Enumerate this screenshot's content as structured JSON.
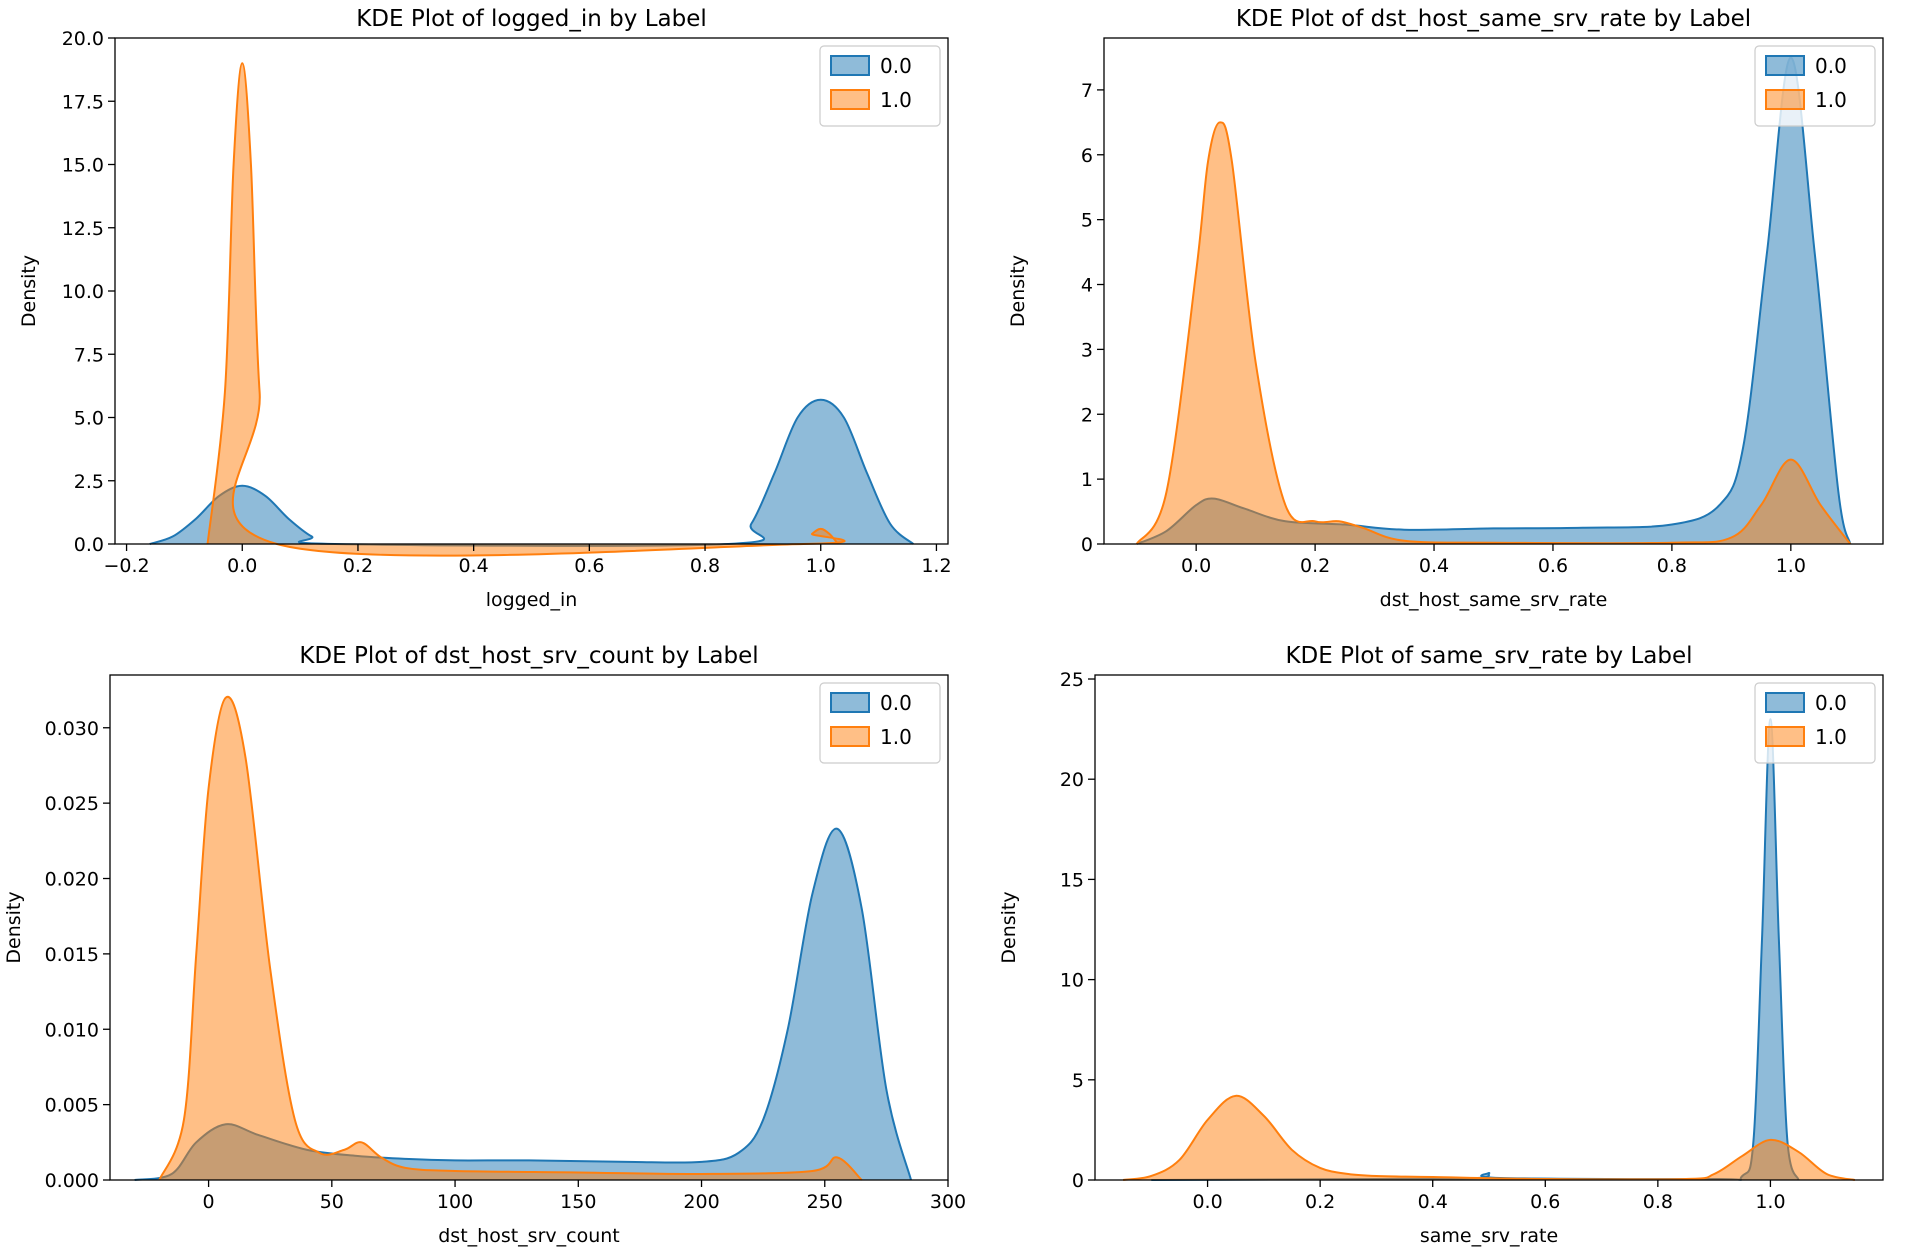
{
  "figure": {
    "background": "#ffffff"
  },
  "colors": {
    "series_0": "#1f77b4",
    "series_1": "#ff7f0e"
  },
  "chart_data": [
    {
      "type": "area",
      "title": "KDE Plot of logged_in by Label",
      "xlabel": "logged_in",
      "ylabel": "Density",
      "xlim": [
        -0.22,
        1.22
      ],
      "ylim": [
        0,
        20
      ],
      "xticks": [
        -0.2,
        0.0,
        0.2,
        0.4,
        0.6,
        0.8,
        1.0,
        1.2
      ],
      "xtick_labels": [
        "−0.2",
        "0.0",
        "0.2",
        "0.4",
        "0.6",
        "0.8",
        "1.0",
        "1.2"
      ],
      "yticks": [
        0,
        2.5,
        5,
        7.5,
        10,
        12.5,
        15,
        17.5,
        20
      ],
      "ytick_labels": [
        "0.0",
        "2.5",
        "5.0",
        "7.5",
        "10.0",
        "12.5",
        "15.0",
        "17.5",
        "20.0"
      ],
      "legend": {
        "position": "top-right",
        "entries": [
          "0.0",
          "1.0"
        ]
      },
      "series": [
        {
          "name": "0.0",
          "x": [
            -0.16,
            -0.12,
            -0.08,
            -0.04,
            0.0,
            0.04,
            0.08,
            0.12,
            0.16,
            0.84,
            0.88,
            0.92,
            0.96,
            1.0,
            1.04,
            1.08,
            1.12,
            1.16
          ],
          "values": [
            0.0,
            0.3,
            1.0,
            1.9,
            2.3,
            1.9,
            1.0,
            0.3,
            0.0,
            0.0,
            0.8,
            2.8,
            5.0,
            5.7,
            5.0,
            2.8,
            0.8,
            0.0
          ]
        },
        {
          "name": "1.0",
          "x": [
            -0.06,
            -0.03,
            -0.015,
            0.0,
            0.015,
            0.03,
            0.06,
            0.97,
            0.985,
            1.0,
            1.015,
            1.03
          ],
          "values": [
            0.0,
            6.0,
            15.0,
            19.0,
            15.0,
            6.0,
            0.0,
            0.0,
            0.4,
            0.6,
            0.4,
            0.0
          ]
        }
      ]
    },
    {
      "type": "area",
      "title": "KDE Plot of dst_host_same_srv_rate by Label",
      "xlabel": "dst_host_same_srv_rate",
      "ylabel": "Density",
      "xlim": [
        -0.155,
        1.155
      ],
      "ylim": [
        0,
        7.8
      ],
      "xticks": [
        0.0,
        0.2,
        0.4,
        0.6,
        0.8,
        1.0
      ],
      "xtick_labels": [
        "0.0",
        "0.2",
        "0.4",
        "0.6",
        "0.8",
        "1.0"
      ],
      "yticks": [
        0,
        1,
        2,
        3,
        4,
        5,
        6,
        7
      ],
      "ytick_labels": [
        "0",
        "1",
        "2",
        "3",
        "4",
        "5",
        "6",
        "7"
      ],
      "legend": {
        "position": "top-right",
        "entries": [
          "0.0",
          "1.0"
        ]
      },
      "series": [
        {
          "name": "0.0",
          "x": [
            -0.1,
            -0.05,
            0.0,
            0.03,
            0.08,
            0.15,
            0.25,
            0.35,
            0.5,
            0.65,
            0.8,
            0.88,
            0.92,
            0.96,
            1.0,
            1.04,
            1.08,
            1.1
          ],
          "values": [
            0.0,
            0.2,
            0.6,
            0.7,
            0.55,
            0.35,
            0.3,
            0.22,
            0.24,
            0.25,
            0.3,
            0.6,
            1.5,
            4.5,
            7.5,
            4.5,
            0.8,
            0.0
          ]
        },
        {
          "name": "1.0",
          "x": [
            -0.1,
            -0.05,
            0.0,
            0.02,
            0.04,
            0.06,
            0.1,
            0.15,
            0.2,
            0.24,
            0.28,
            0.35,
            0.5,
            0.8,
            0.9,
            0.95,
            1.0,
            1.05,
            1.1
          ],
          "values": [
            0.0,
            0.8,
            4.2,
            5.9,
            6.5,
            5.9,
            2.8,
            0.6,
            0.35,
            0.35,
            0.25,
            0.05,
            0.02,
            0.02,
            0.1,
            0.6,
            1.3,
            0.6,
            0.0
          ]
        }
      ]
    },
    {
      "type": "area",
      "title": "KDE Plot of dst_host_srv_count by Label",
      "xlabel": "dst_host_srv_count",
      "ylabel": "Density",
      "xlim": [
        -40,
        300
      ],
      "ylim": [
        0,
        0.0335
      ],
      "xticks": [
        0,
        50,
        100,
        150,
        200,
        250,
        300
      ],
      "xtick_labels": [
        "0",
        "50",
        "100",
        "150",
        "200",
        "250",
        "300"
      ],
      "yticks": [
        0,
        0.005,
        0.01,
        0.015,
        0.02,
        0.025,
        0.03
      ],
      "ytick_labels": [
        "0.000",
        "0.005",
        "0.010",
        "0.015",
        "0.020",
        "0.025",
        "0.030"
      ],
      "legend": {
        "position": "top-right",
        "entries": [
          "0.0",
          "1.0"
        ]
      },
      "series": [
        {
          "name": "0.0",
          "x": [
            -30,
            -15,
            -5,
            7,
            20,
            40,
            60,
            80,
            100,
            130,
            170,
            200,
            215,
            225,
            235,
            245,
            255,
            265,
            275,
            285
          ],
          "values": [
            0.0,
            0.0004,
            0.0025,
            0.0037,
            0.003,
            0.002,
            0.0016,
            0.0014,
            0.0013,
            0.0013,
            0.0012,
            0.0012,
            0.0018,
            0.004,
            0.01,
            0.019,
            0.0233,
            0.018,
            0.006,
            0.0
          ]
        },
        {
          "name": "1.0",
          "x": [
            -20,
            -10,
            -5,
            0,
            7,
            15,
            25,
            35,
            45,
            55,
            62,
            70,
            80,
            100,
            150,
            200,
            245,
            255,
            265
          ],
          "values": [
            0.0,
            0.004,
            0.015,
            0.026,
            0.032,
            0.028,
            0.014,
            0.004,
            0.0018,
            0.002,
            0.0025,
            0.0015,
            0.0008,
            0.0006,
            0.0005,
            0.0004,
            0.0006,
            0.0015,
            0.0
          ]
        }
      ]
    },
    {
      "type": "area",
      "title": "KDE Plot of same_srv_rate by Label",
      "xlabel": "same_srv_rate",
      "ylabel": "Density",
      "xlim": [
        -0.2,
        1.2
      ],
      "ylim": [
        0,
        25.2
      ],
      "xticks": [
        0.0,
        0.2,
        0.4,
        0.6,
        0.8,
        1.0
      ],
      "xtick_labels": [
        "0.0",
        "0.2",
        "0.4",
        "0.6",
        "0.8",
        "1.0"
      ],
      "yticks": [
        0,
        5,
        10,
        15,
        20,
        25
      ],
      "ytick_labels": [
        "0",
        "5",
        "10",
        "15",
        "20",
        "25"
      ],
      "legend": {
        "position": "top-right",
        "entries": [
          "0.0",
          "1.0"
        ]
      },
      "series": [
        {
          "name": "0.0",
          "x": [
            -0.1,
            0.3,
            0.48,
            0.5,
            0.52,
            0.9,
            0.95,
            0.97,
            0.985,
            1.0,
            1.015,
            1.03,
            1.05
          ],
          "values": [
            0.0,
            0.05,
            0.1,
            0.35,
            0.1,
            0.05,
            0.2,
            2.0,
            12.0,
            23.0,
            12.0,
            2.0,
            0.0
          ]
        },
        {
          "name": "1.0",
          "x": [
            -0.15,
            -0.1,
            -0.05,
            0.0,
            0.05,
            0.1,
            0.15,
            0.2,
            0.25,
            0.3,
            0.4,
            0.6,
            0.85,
            0.9,
            0.95,
            1.0,
            1.05,
            1.1,
            1.15
          ],
          "values": [
            0.0,
            0.2,
            1.0,
            3.0,
            4.2,
            3.2,
            1.5,
            0.6,
            0.3,
            0.2,
            0.15,
            0.05,
            0.05,
            0.3,
            1.2,
            2.0,
            1.4,
            0.3,
            0.0
          ]
        }
      ]
    }
  ]
}
